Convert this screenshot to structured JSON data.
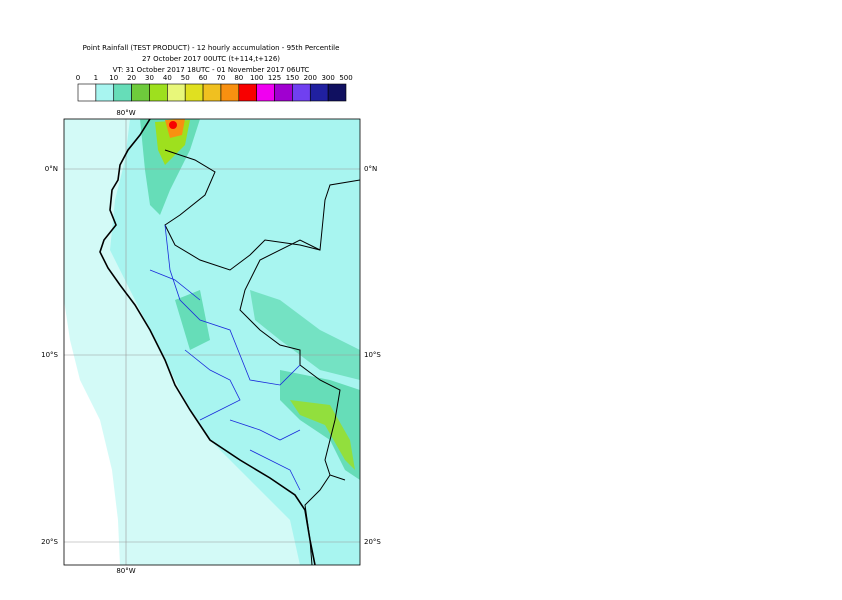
{
  "header": {
    "title": "Point Rainfall (TEST PRODUCT) - 12 hourly accumulation - 95th Percentile",
    "base_time": "27 October 2017 00UTC (t+114,t+126)",
    "valid_time": "VT: 31 October 2017 18UTC - 01 November 2017 06UTC"
  },
  "colorbar": {
    "labels": [
      "0",
      "1",
      "10",
      "20",
      "30",
      "40",
      "50",
      "60",
      "70",
      "80",
      "100",
      "125",
      "150",
      "200",
      "300",
      "500"
    ],
    "colors": [
      "#ffffff",
      "#a8f5f0",
      "#66ddb8",
      "#6ecb3c",
      "#9ee01e",
      "#e8f77a",
      "#e0e020",
      "#f0c020",
      "#f89010",
      "#f80000",
      "#f000f0",
      "#a000d0",
      "#7040f0",
      "#2020a0",
      "#101060"
    ]
  },
  "map": {
    "lon_labels": [
      "80°W"
    ],
    "lat_labels": [
      "0°N",
      "10°S",
      "20°S"
    ]
  }
}
